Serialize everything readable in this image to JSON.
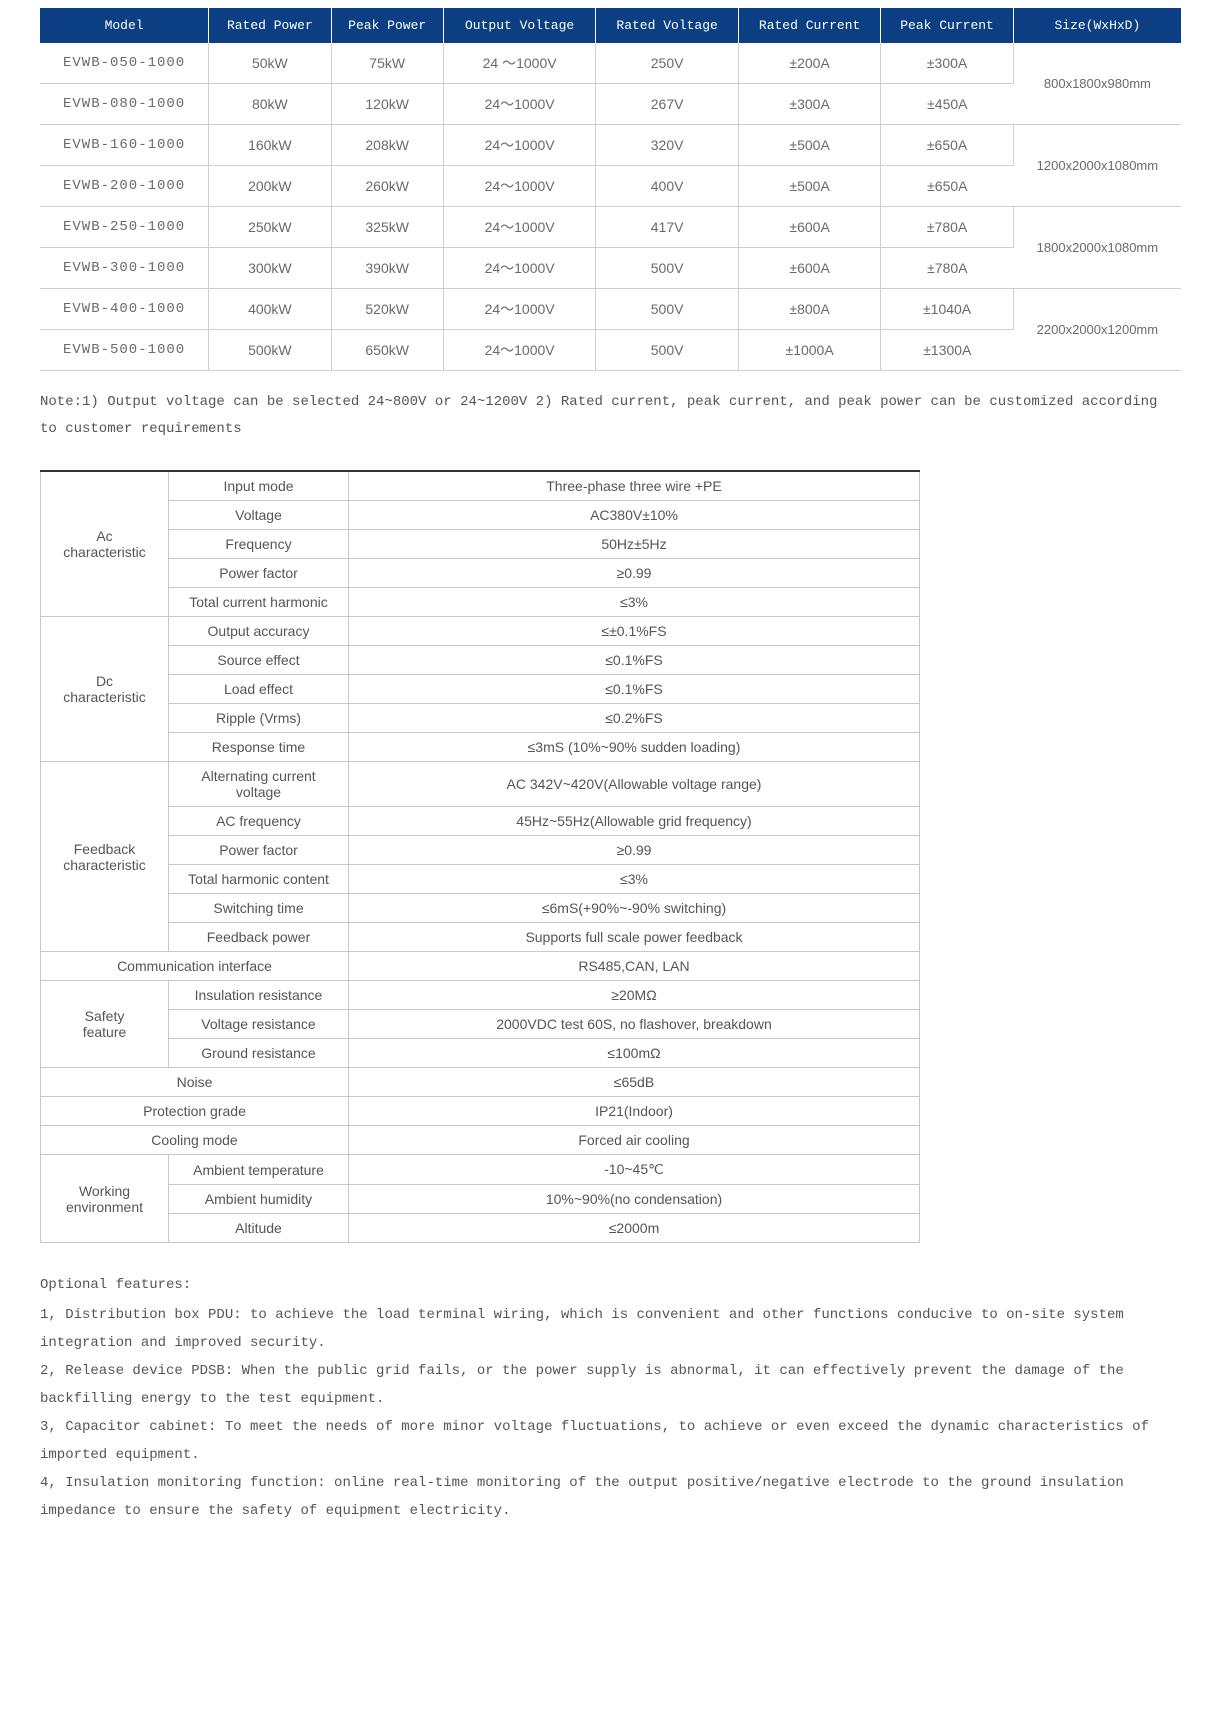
{
  "models_table": {
    "headers": [
      "Model",
      "Rated Power",
      "Peak Power",
      "Output Voltage",
      "Rated Voltage",
      "Rated Current",
      "Peak Current",
      "Size(WxHxD)"
    ],
    "rows": [
      {
        "model": "EVWB-050-1000",
        "rated_power": "50kW",
        "peak_power": "75kW",
        "output_voltage": "24 ～1000V",
        "rated_voltage": "250V",
        "rated_current": "±200A",
        "peak_current": "±300A"
      },
      {
        "model": "EVWB-080-1000",
        "rated_power": "80kW",
        "peak_power": "120kW",
        "output_voltage": "24～1000V",
        "rated_voltage": "267V",
        "rated_current": "±300A",
        "peak_current": "±450A"
      },
      {
        "model": "EVWB-160-1000",
        "rated_power": "160kW",
        "peak_power": "208kW",
        "output_voltage": "24～1000V",
        "rated_voltage": "320V",
        "rated_current": "±500A",
        "peak_current": "±650A"
      },
      {
        "model": "EVWB-200-1000",
        "rated_power": "200kW",
        "peak_power": "260kW",
        "output_voltage": "24～1000V",
        "rated_voltage": "400V",
        "rated_current": "±500A",
        "peak_current": "±650A"
      },
      {
        "model": "EVWB-250-1000",
        "rated_power": "250kW",
        "peak_power": "325kW",
        "output_voltage": "24～1000V",
        "rated_voltage": "417V",
        "rated_current": "±600A",
        "peak_current": "±780A"
      },
      {
        "model": "EVWB-300-1000",
        "rated_power": "300kW",
        "peak_power": "390kW",
        "output_voltage": "24～1000V",
        "rated_voltage": "500V",
        "rated_current": "±600A",
        "peak_current": "±780A"
      },
      {
        "model": "EVWB-400-1000",
        "rated_power": "400kW",
        "peak_power": "520kW",
        "output_voltage": "24～1000V",
        "rated_voltage": "500V",
        "rated_current": "±800A",
        "peak_current": "±1040A"
      },
      {
        "model": "EVWB-500-1000",
        "rated_power": "500kW",
        "peak_power": "650kW",
        "output_voltage": "24～1000V",
        "rated_voltage": "500V",
        "rated_current": "±1000A",
        "peak_current": "±1300A"
      }
    ],
    "sizes": [
      "800x1800x980mm",
      "1200x2000x1080mm",
      "1800x2000x1080mm",
      "2200x2000x1200mm"
    ]
  },
  "note1": "Note:1) Output voltage can be selected 24~800V or 24~1200V 2) Rated current, peak current, and peak power can be customized according to customer requirements",
  "specs_table": {
    "groups": [
      {
        "category": "Ac characteristic",
        "rows": [
          {
            "param": "Input mode",
            "value": "Three-phase three wire +PE"
          },
          {
            "param": "Voltage",
            "value": "AC380V±10%"
          },
          {
            "param": "Frequency",
            "value": "50Hz±5Hz"
          },
          {
            "param": "Power factor",
            "value": "≥0.99"
          },
          {
            "param": "Total current harmonic",
            "value": "≤3%"
          }
        ]
      },
      {
        "category": "Dc characteristic",
        "rows": [
          {
            "param": "Output accuracy",
            "value": "≤±0.1%FS"
          },
          {
            "param": "Source effect",
            "value": "≤0.1%FS"
          },
          {
            "param": "Load effect",
            "value": "≤0.1%FS"
          },
          {
            "param": "Ripple (Vrms)",
            "value": "≤0.2%FS"
          },
          {
            "param": "Response time",
            "value": "≤3mS  (10%~90% sudden loading)"
          }
        ]
      },
      {
        "category": "Feedback characteristic",
        "rows": [
          {
            "param": "Alternating current voltage",
            "value": "AC 342V~420V(Allowable voltage range)"
          },
          {
            "param": "AC frequency",
            "value": "45Hz~55Hz(Allowable grid frequency)"
          },
          {
            "param": "Power factor",
            "value": "≥0.99"
          },
          {
            "param": "Total harmonic content",
            "value": "≤3%"
          },
          {
            "param": "Switching time",
            "value": "≤6mS(+90%~-90% switching)"
          },
          {
            "param": "Feedback power",
            "value": "Supports full scale power feedback"
          }
        ]
      },
      {
        "category": "Communication interface",
        "colspan": true,
        "rows": [
          {
            "param": "",
            "value": "RS485,CAN, LAN"
          }
        ]
      },
      {
        "category": "Safety feature",
        "rows": [
          {
            "param": "Insulation resistance",
            "value": "≥20MΩ"
          },
          {
            "param": "Voltage resistance",
            "value": "2000VDC test 60S, no flashover, breakdown"
          },
          {
            "param": "Ground resistance",
            "value": "≤100mΩ"
          }
        ]
      },
      {
        "category": "Noise",
        "colspan": true,
        "rows": [
          {
            "param": "",
            "value": "≤65dB"
          }
        ]
      },
      {
        "category": "Protection grade",
        "colspan": true,
        "rows": [
          {
            "param": "",
            "value": "IP21(Indoor)"
          }
        ]
      },
      {
        "category": "Cooling mode",
        "colspan": true,
        "rows": [
          {
            "param": "",
            "value": "Forced air cooling"
          }
        ]
      },
      {
        "category": "Working environment",
        "rows": [
          {
            "param": "Ambient temperature",
            "value": "-10~45℃"
          },
          {
            "param": "Ambient humidity",
            "value": "10%~90%(no condensation)"
          },
          {
            "param": "Altitude",
            "value": "≤2000m"
          }
        ]
      }
    ]
  },
  "optional": {
    "title": "Optional features:",
    "items": [
      "1, Distribution box PDU: to achieve the load terminal wiring, which is convenient and other functions conducive to on-site system integration and improved security.",
      "2, Release device PDSB: When the public grid fails, or the power supply is abnormal, it can effectively prevent the damage of the backfilling energy to the test equipment.",
      "3, Capacitor cabinet: To meet the needs of more minor voltage fluctuations, to achieve or even exceed the dynamic characteristics of imported equipment.",
      "4, Insulation monitoring function: online real-time monitoring of the output positive/negative electrode to the ground insulation impedance to ensure the safety of equipment electricity."
    ]
  }
}
